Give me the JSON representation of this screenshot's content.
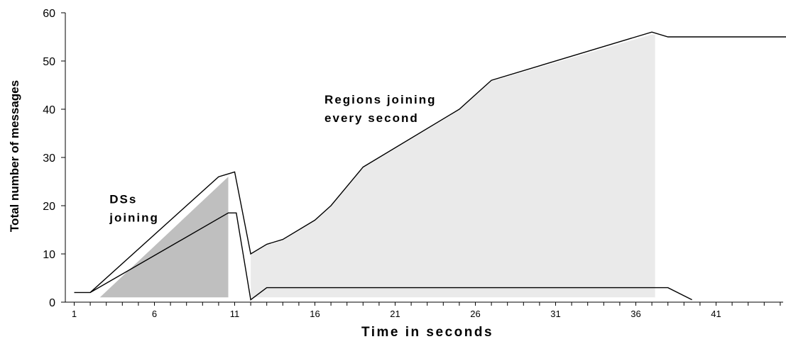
{
  "chart_data": {
    "type": "area",
    "xlabel": "Time in seconds",
    "ylabel": "Total number of messages",
    "xlim": [
      0.5,
      50
    ],
    "ylim": [
      0,
      60
    ],
    "x_tick_labels": [
      "1",
      "6",
      "11",
      "16",
      "21",
      "26",
      "31",
      "36",
      "41"
    ],
    "x_tick_values": [
      1,
      6,
      11,
      16,
      21,
      26,
      31,
      36,
      41
    ],
    "y_tick_labels": [
      "0",
      "10",
      "20",
      "30",
      "40",
      "50",
      "60"
    ],
    "y_tick_values": [
      0,
      10,
      20,
      30,
      40,
      50,
      60
    ],
    "annotations": [
      {
        "lines": [
          "DSs",
          "joining"
        ],
        "x": 3.2,
        "y": 20.5
      },
      {
        "lines": [
          "Regions joining",
          "every second"
        ],
        "x": 16.6,
        "y": 41.2
      }
    ],
    "series": [
      {
        "role": "total",
        "x": [
          1,
          2,
          10,
          11,
          12,
          13,
          14,
          16,
          17,
          19,
          25,
          27,
          37,
          38,
          50
        ],
        "y": [
          2,
          2,
          26,
          27,
          10,
          12,
          13,
          17,
          20,
          28,
          40,
          46,
          56,
          55,
          55
        ]
      },
      {
        "role": "secondary",
        "x": [
          2,
          10.6,
          11.1,
          12,
          13,
          38,
          39.5
        ],
        "y": [
          2,
          18.5,
          18.5,
          0.5,
          3,
          3,
          0.5
        ]
      }
    ],
    "shaded_regions": [
      {
        "color": "#bfbfbf",
        "x": [
          2.6,
          10.6,
          10.6,
          2.6,
          2.6
        ],
        "y": [
          1,
          26,
          1,
          1,
          1
        ]
      },
      {
        "color": "#eaeaea",
        "x": [
          12,
          13,
          14,
          16,
          17,
          19,
          25,
          27,
          37,
          37.2,
          37.2,
          12
        ],
        "y": [
          9.8,
          11.8,
          12.8,
          16.8,
          19.8,
          27.8,
          39.8,
          45.8,
          55.5,
          55.5,
          1,
          1
        ]
      }
    ],
    "colors": {
      "dark_fill": "#bfbfbf",
      "light_fill": "#eaeaea",
      "line": "#000000"
    }
  }
}
